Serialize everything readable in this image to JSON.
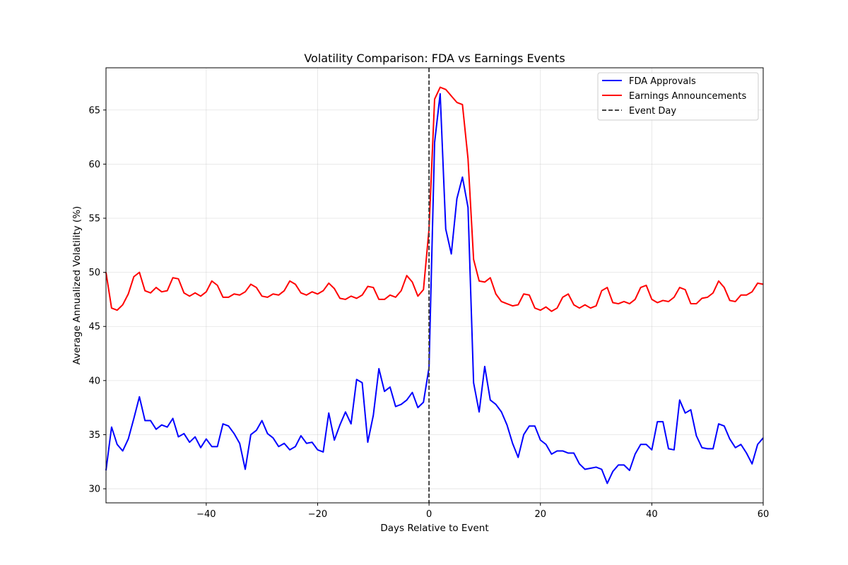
{
  "chart_data": {
    "type": "line",
    "title": "Volatility Comparison: FDA vs Earnings Events",
    "xlabel": "Days Relative to Event",
    "ylabel": "Average Annualized Volatility (%)",
    "xlim": [
      -58,
      60
    ],
    "ylim": [
      28.7,
      68.9
    ],
    "xticks": [
      -40,
      -20,
      0,
      20,
      40,
      60
    ],
    "yticks": [
      30,
      35,
      40,
      45,
      50,
      55,
      60,
      65
    ],
    "xtick_labels": [
      "−40",
      "−20",
      "0",
      "20",
      "40",
      "60"
    ],
    "ytick_labels": [
      "30",
      "35",
      "40",
      "45",
      "50",
      "55",
      "60",
      "65"
    ],
    "grid": true,
    "legend_position": "top-right",
    "x": [
      -58,
      -57,
      -56,
      -55,
      -54,
      -53,
      -52,
      -51,
      -50,
      -49,
      -48,
      -47,
      -46,
      -45,
      -44,
      -43,
      -42,
      -41,
      -40,
      -39,
      -38,
      -37,
      -36,
      -35,
      -34,
      -33,
      -32,
      -31,
      -30,
      -29,
      -28,
      -27,
      -26,
      -25,
      -24,
      -23,
      -22,
      -21,
      -20,
      -19,
      -18,
      -17,
      -16,
      -15,
      -14,
      -13,
      -12,
      -11,
      -10,
      -9,
      -8,
      -7,
      -6,
      -5,
      -4,
      -3,
      -2,
      -1,
      0,
      1,
      2,
      3,
      4,
      5,
      6,
      7,
      8,
      9,
      10,
      11,
      12,
      13,
      14,
      15,
      16,
      17,
      18,
      19,
      20,
      21,
      22,
      23,
      24,
      25,
      26,
      27,
      28,
      29,
      30,
      31,
      32,
      33,
      34,
      35,
      36,
      37,
      38,
      39,
      40,
      41,
      42,
      43,
      44,
      45,
      46,
      47,
      48,
      49,
      50,
      51,
      52,
      53,
      54,
      55,
      56,
      57,
      58,
      59,
      60
    ],
    "series": [
      {
        "name": "FDA Approvals",
        "color": "#0000ff",
        "values": [
          31.7,
          35.7,
          34.1,
          33.5,
          34.6,
          36.5,
          38.5,
          36.3,
          36.3,
          35.5,
          35.9,
          35.7,
          36.5,
          34.8,
          35.1,
          34.3,
          34.8,
          33.8,
          34.6,
          33.9,
          33.9,
          36.0,
          35.8,
          35.1,
          34.2,
          31.8,
          35.0,
          35.4,
          36.3,
          35.1,
          34.7,
          33.9,
          34.2,
          33.6,
          33.9,
          34.9,
          34.2,
          34.3,
          33.6,
          33.4,
          37.0,
          34.5,
          35.9,
          37.1,
          36.0,
          40.1,
          39.8,
          34.3,
          36.8,
          41.1,
          39.0,
          39.4,
          37.6,
          37.8,
          38.2,
          38.9,
          37.5,
          38.0,
          41.2,
          62.0,
          66.5,
          54.0,
          51.7,
          56.8,
          58.8,
          56.0,
          39.8,
          37.1,
          41.3,
          38.2,
          37.8,
          37.1,
          35.9,
          34.2,
          32.9,
          35.0,
          35.8,
          35.8,
          34.5,
          34.1,
          33.2,
          33.5,
          33.5,
          33.3,
          33.3,
          32.3,
          31.8,
          31.9,
          32.0,
          31.8,
          30.5,
          31.6,
          32.2,
          32.2,
          31.7,
          33.2,
          34.1,
          34.1,
          33.6,
          36.2,
          36.2,
          33.7,
          33.6,
          38.2,
          37.0,
          37.3,
          34.9,
          33.8,
          33.7,
          33.7,
          36.0,
          35.8,
          34.6,
          33.8,
          34.1,
          33.3,
          32.3,
          34.1,
          34.7
        ]
      },
      {
        "name": "Earnings Announcements",
        "color": "#ff0000",
        "values": [
          50.0,
          46.7,
          46.5,
          47.0,
          48.0,
          49.6,
          50.0,
          48.3,
          48.1,
          48.6,
          48.2,
          48.3,
          49.5,
          49.4,
          48.1,
          47.8,
          48.1,
          47.8,
          48.2,
          49.2,
          48.8,
          47.7,
          47.7,
          48.0,
          47.9,
          48.2,
          48.9,
          48.6,
          47.8,
          47.7,
          48.0,
          47.9,
          48.3,
          49.2,
          48.9,
          48.1,
          47.9,
          48.2,
          48.0,
          48.3,
          49.0,
          48.5,
          47.6,
          47.5,
          47.8,
          47.6,
          47.9,
          48.7,
          48.6,
          47.5,
          47.5,
          47.9,
          47.7,
          48.3,
          49.7,
          49.1,
          47.8,
          48.4,
          54.0,
          66.0,
          67.1,
          66.9,
          66.3,
          65.7,
          65.5,
          60.5,
          51.2,
          49.2,
          49.1,
          49.5,
          48.0,
          47.3,
          47.1,
          46.9,
          47.0,
          48.0,
          47.9,
          46.7,
          46.5,
          46.8,
          46.4,
          46.7,
          47.7,
          48.0,
          47.0,
          46.7,
          47.0,
          46.7,
          46.9,
          48.3,
          48.6,
          47.2,
          47.1,
          47.3,
          47.1,
          47.5,
          48.6,
          48.8,
          47.5,
          47.2,
          47.4,
          47.3,
          47.7,
          48.6,
          48.4,
          47.1,
          47.1,
          47.6,
          47.7,
          48.1,
          49.2,
          48.6,
          47.4,
          47.3,
          47.9,
          47.9,
          48.2,
          49.0,
          48.9
        ]
      }
    ],
    "event_line": {
      "name": "Event Day",
      "x": 0,
      "color": "#444444",
      "style": "dashed"
    }
  }
}
